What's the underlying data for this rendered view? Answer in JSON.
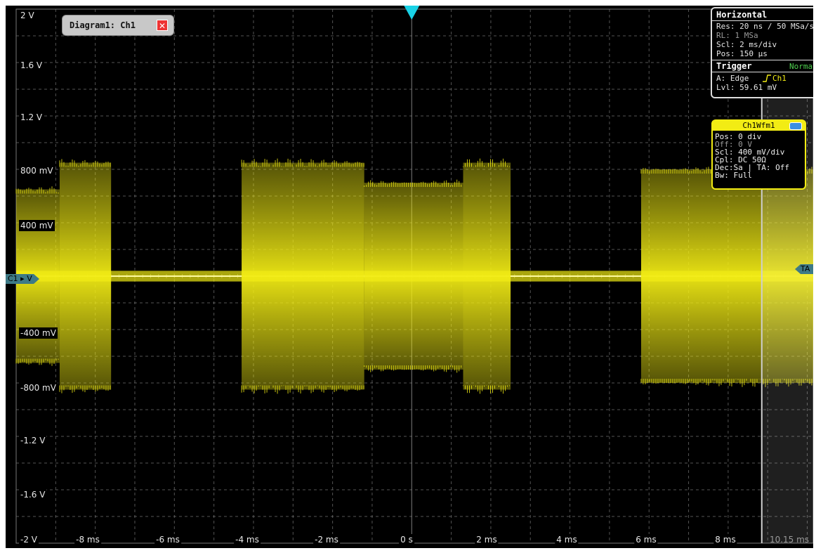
{
  "diagram_tab": {
    "title": "Diagram1: Ch1",
    "close_glyph": "✕"
  },
  "y_axis": {
    "labels": [
      "2 V",
      "1.6 V",
      "1.2 V",
      "800 mV",
      "400 mV",
      "-400 mV",
      "-800 mV",
      "-1.2 V",
      "-1.6 V",
      "-2 V"
    ],
    "ground_marker": "C1 ▸ V"
  },
  "x_axis": {
    "labels": [
      "-8 ms",
      "-6 ms",
      "-4 ms",
      "-2 ms",
      "0 s",
      "2 ms",
      "4 ms",
      "6 ms",
      "8 ms"
    ],
    "end_label": "10.15 ms"
  },
  "horizontal_panel": {
    "header": "Horizontal",
    "res": "Res: 20 ns / 50 MSa/s",
    "rl": "RL:  1 MSa",
    "rl_suffix": "R",
    "scl": "Scl: 2 ms/div",
    "pos": "Pos: 150 µs",
    "trigger_header": "Trigger",
    "trigger_mode": "Norma",
    "trigger_a": "A:  Edge",
    "trigger_source": "Ch1",
    "trigger_lvl": "Lvl: 59.61 mV"
  },
  "waveform_panel": {
    "title": "Ch1Wfm1",
    "pos": "Pos: 0 div",
    "off": "Off: 0 V",
    "scl": "Scl: 400 mV/div",
    "cpl": "Cpl: DC 50Ω",
    "dec": "Dec:Sa | TA: Off",
    "bw": "Bw: Full"
  },
  "ta_marker": "TA",
  "colors": {
    "trace": "#f2ec14",
    "grid": "#8a8a8a",
    "trigger_marker": "#19d2e6",
    "background": "#000000"
  },
  "chart_data": {
    "type": "line",
    "title": "",
    "xlabel": "",
    "ylabel": "",
    "xlim_ms": [
      -10,
      10.15
    ],
    "ylim_V": [
      -2,
      2
    ],
    "grid": true,
    "series": [
      {
        "bursts_ms": [
          {
            "start": -10.0,
            "end": -8.9,
            "amplitude_V": 0.65
          },
          {
            "start": -8.9,
            "end": -7.6,
            "amplitude_V": 0.85
          },
          {
            "start": -4.3,
            "end": -1.2,
            "amplitude_V": 0.85
          },
          {
            "start": -1.2,
            "end": 1.3,
            "amplitude_V": 0.7
          },
          {
            "start": 1.3,
            "end": 2.5,
            "amplitude_V": 0.85
          },
          {
            "start": 5.8,
            "end": 10.15,
            "amplitude_V": 0.8
          }
        ],
        "idle_amplitude_V": 0.04
      }
    ]
  }
}
